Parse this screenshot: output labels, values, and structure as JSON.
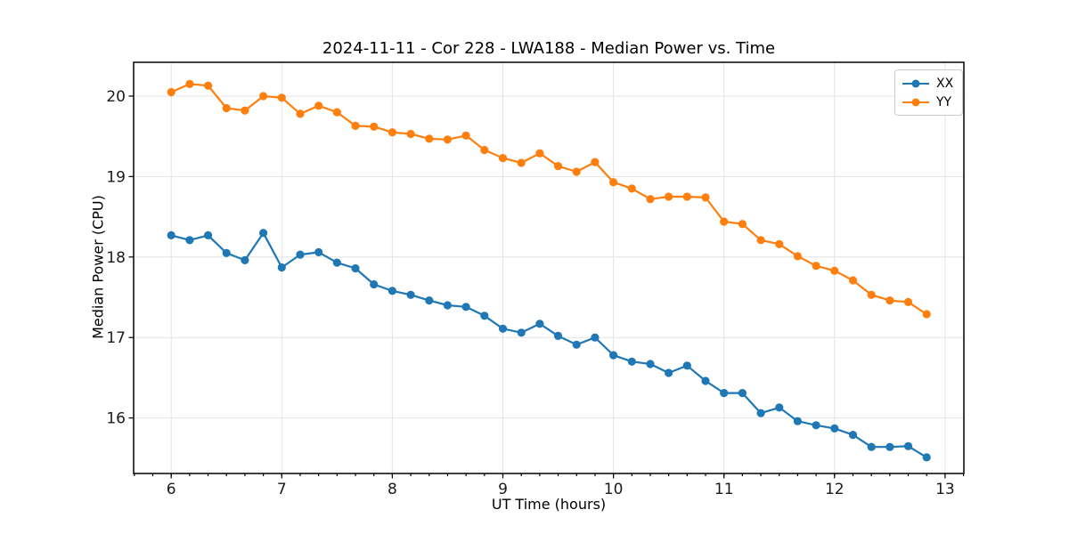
{
  "chart_data": {
    "type": "line",
    "title": "2024-11-11 - Cor 228 - LWA188 - Median Power vs. Time",
    "xlabel": "UT Time (hours)",
    "ylabel": "Median Power (CPU)",
    "xlim": [
      5.66,
      13.17
    ],
    "ylim": [
      15.31,
      20.42
    ],
    "x_major_ticks": [
      6,
      7,
      8,
      9,
      10,
      11,
      12,
      13
    ],
    "y_major_ticks": [
      16,
      17,
      18,
      19,
      20
    ],
    "x_minor_tick_step": 0.166667,
    "grid": "major-both",
    "legend_position": "upper-right",
    "x": [
      6.0,
      6.1667,
      6.3333,
      6.5,
      6.6667,
      6.8333,
      7.0,
      7.1667,
      7.3333,
      7.5,
      7.6667,
      7.8333,
      8.0,
      8.1667,
      8.3333,
      8.5,
      8.6667,
      8.8333,
      9.0,
      9.1667,
      9.3333,
      9.5,
      9.6667,
      9.8333,
      10.0,
      10.1667,
      10.3333,
      10.5,
      10.6667,
      10.8333,
      11.0,
      11.1667,
      11.3333,
      11.5,
      11.6667,
      11.8333,
      12.0,
      12.1667,
      12.3333,
      12.5,
      12.6667,
      12.8333
    ],
    "series": [
      {
        "name": "XX",
        "color": "#1f77b4",
        "values": [
          18.27,
          18.21,
          18.27,
          18.05,
          17.96,
          18.3,
          17.87,
          18.03,
          18.06,
          17.93,
          17.86,
          17.66,
          17.58,
          17.53,
          17.46,
          17.4,
          17.38,
          17.27,
          17.11,
          17.06,
          17.17,
          17.02,
          16.91,
          17.0,
          16.78,
          16.7,
          16.67,
          16.56,
          16.65,
          16.46,
          16.31,
          16.31,
          16.06,
          16.13,
          15.96,
          15.91,
          15.87,
          15.79,
          15.64,
          15.64,
          15.65,
          15.51
        ]
      },
      {
        "name": "YY",
        "color": "#ff7f0e",
        "values": [
          20.05,
          20.15,
          20.13,
          19.85,
          19.82,
          20.0,
          19.98,
          19.78,
          19.88,
          19.8,
          19.63,
          19.62,
          19.55,
          19.53,
          19.47,
          19.46,
          19.51,
          19.33,
          19.23,
          19.17,
          19.29,
          19.13,
          19.06,
          19.18,
          18.93,
          18.85,
          18.72,
          18.75,
          18.75,
          18.74,
          18.44,
          18.41,
          18.21,
          18.16,
          18.01,
          17.89,
          17.83,
          17.71,
          17.53,
          17.46,
          17.44,
          17.29
        ]
      }
    ],
    "style": {
      "grid_color": "#e4e4e4",
      "spine_color": "#000000",
      "tick_label_color": "#1a1a1a",
      "marker_radius": 4.6,
      "line_width": 2.2
    }
  }
}
